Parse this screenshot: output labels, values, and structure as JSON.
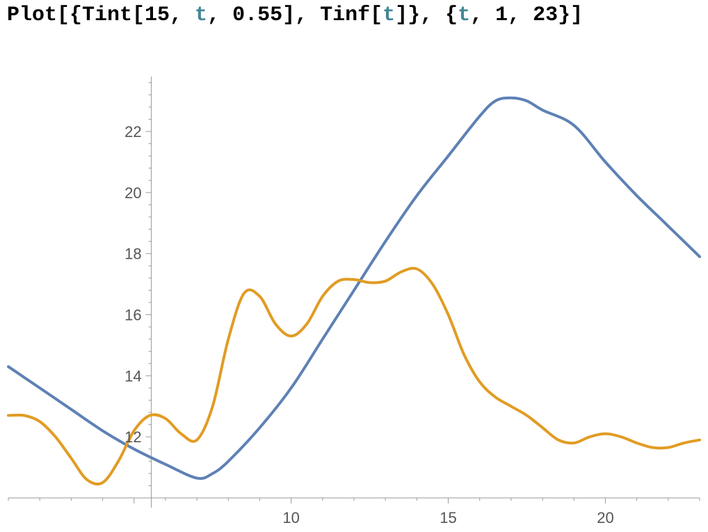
{
  "input": {
    "tokens": [
      {
        "text": "Plot[{Tint[15, ",
        "kind": "code"
      },
      {
        "text": "t",
        "kind": "var"
      },
      {
        "text": ", 0.55], Tinf[",
        "kind": "code"
      },
      {
        "text": "t",
        "kind": "var"
      },
      {
        "text": "]}, {",
        "kind": "code"
      },
      {
        "text": "t",
        "kind": "var"
      },
      {
        "text": ", 1, 23}]",
        "kind": "code"
      }
    ]
  },
  "colors": {
    "series_1": "#5e81b5",
    "series_2": "#e19c24",
    "axis": "#999999",
    "tick_label": "#555555",
    "variable": "#438797"
  },
  "chart_data": {
    "type": "line",
    "title": "",
    "xlabel": "",
    "ylabel": "",
    "xlim": [
      1,
      23
    ],
    "ylim": [
      10,
      23.8
    ],
    "axes_origin": [
      5.55,
      10
    ],
    "x_ticks": [
      10,
      15,
      20
    ],
    "y_ticks": [
      12,
      14,
      16,
      18,
      20,
      22
    ],
    "grid": false,
    "legend": "none",
    "series": [
      {
        "color": "#5e81b5",
        "points": [
          [
            1,
            14.3
          ],
          [
            2,
            13.6
          ],
          [
            3,
            12.9
          ],
          [
            4,
            12.2
          ],
          [
            5,
            11.6
          ],
          [
            6,
            11.1
          ],
          [
            7,
            10.65
          ],
          [
            7.5,
            10.8
          ],
          [
            8,
            11.2
          ],
          [
            9,
            12.3
          ],
          [
            10,
            13.6
          ],
          [
            11,
            15.2
          ],
          [
            12,
            16.8
          ],
          [
            13,
            18.4
          ],
          [
            14,
            19.9
          ],
          [
            15,
            21.2
          ],
          [
            16,
            22.5
          ],
          [
            16.5,
            23.0
          ],
          [
            17,
            23.1
          ],
          [
            17.5,
            23.0
          ],
          [
            18,
            22.7
          ],
          [
            19,
            22.2
          ],
          [
            20,
            21.0
          ],
          [
            21,
            19.9
          ],
          [
            22,
            18.9
          ],
          [
            23,
            17.9
          ]
        ]
      },
      {
        "color": "#e19c24",
        "points": [
          [
            1,
            12.7
          ],
          [
            1.5,
            12.7
          ],
          [
            2,
            12.5
          ],
          [
            2.5,
            12.0
          ],
          [
            3,
            11.3
          ],
          [
            3.5,
            10.6
          ],
          [
            4,
            10.5
          ],
          [
            4.5,
            11.2
          ],
          [
            5,
            12.2
          ],
          [
            5.5,
            12.7
          ],
          [
            6,
            12.6
          ],
          [
            6.5,
            12.1
          ],
          [
            7,
            11.9
          ],
          [
            7.5,
            13.0
          ],
          [
            8,
            15.2
          ],
          [
            8.5,
            16.7
          ],
          [
            9,
            16.6
          ],
          [
            9.5,
            15.7
          ],
          [
            10,
            15.3
          ],
          [
            10.5,
            15.7
          ],
          [
            11,
            16.6
          ],
          [
            11.5,
            17.1
          ],
          [
            12,
            17.15
          ],
          [
            12.5,
            17.05
          ],
          [
            13,
            17.1
          ],
          [
            13.5,
            17.4
          ],
          [
            14,
            17.5
          ],
          [
            14.5,
            17.0
          ],
          [
            15,
            16.0
          ],
          [
            15.5,
            14.7
          ],
          [
            16,
            13.8
          ],
          [
            16.5,
            13.3
          ],
          [
            17,
            13.0
          ],
          [
            17.5,
            12.7
          ],
          [
            18,
            12.3
          ],
          [
            18.5,
            11.9
          ],
          [
            19,
            11.8
          ],
          [
            19.5,
            12.0
          ],
          [
            20,
            12.1
          ],
          [
            20.5,
            12.0
          ],
          [
            21,
            11.8
          ],
          [
            21.5,
            11.65
          ],
          [
            22,
            11.65
          ],
          [
            22.5,
            11.8
          ],
          [
            23,
            11.9
          ]
        ]
      }
    ]
  }
}
